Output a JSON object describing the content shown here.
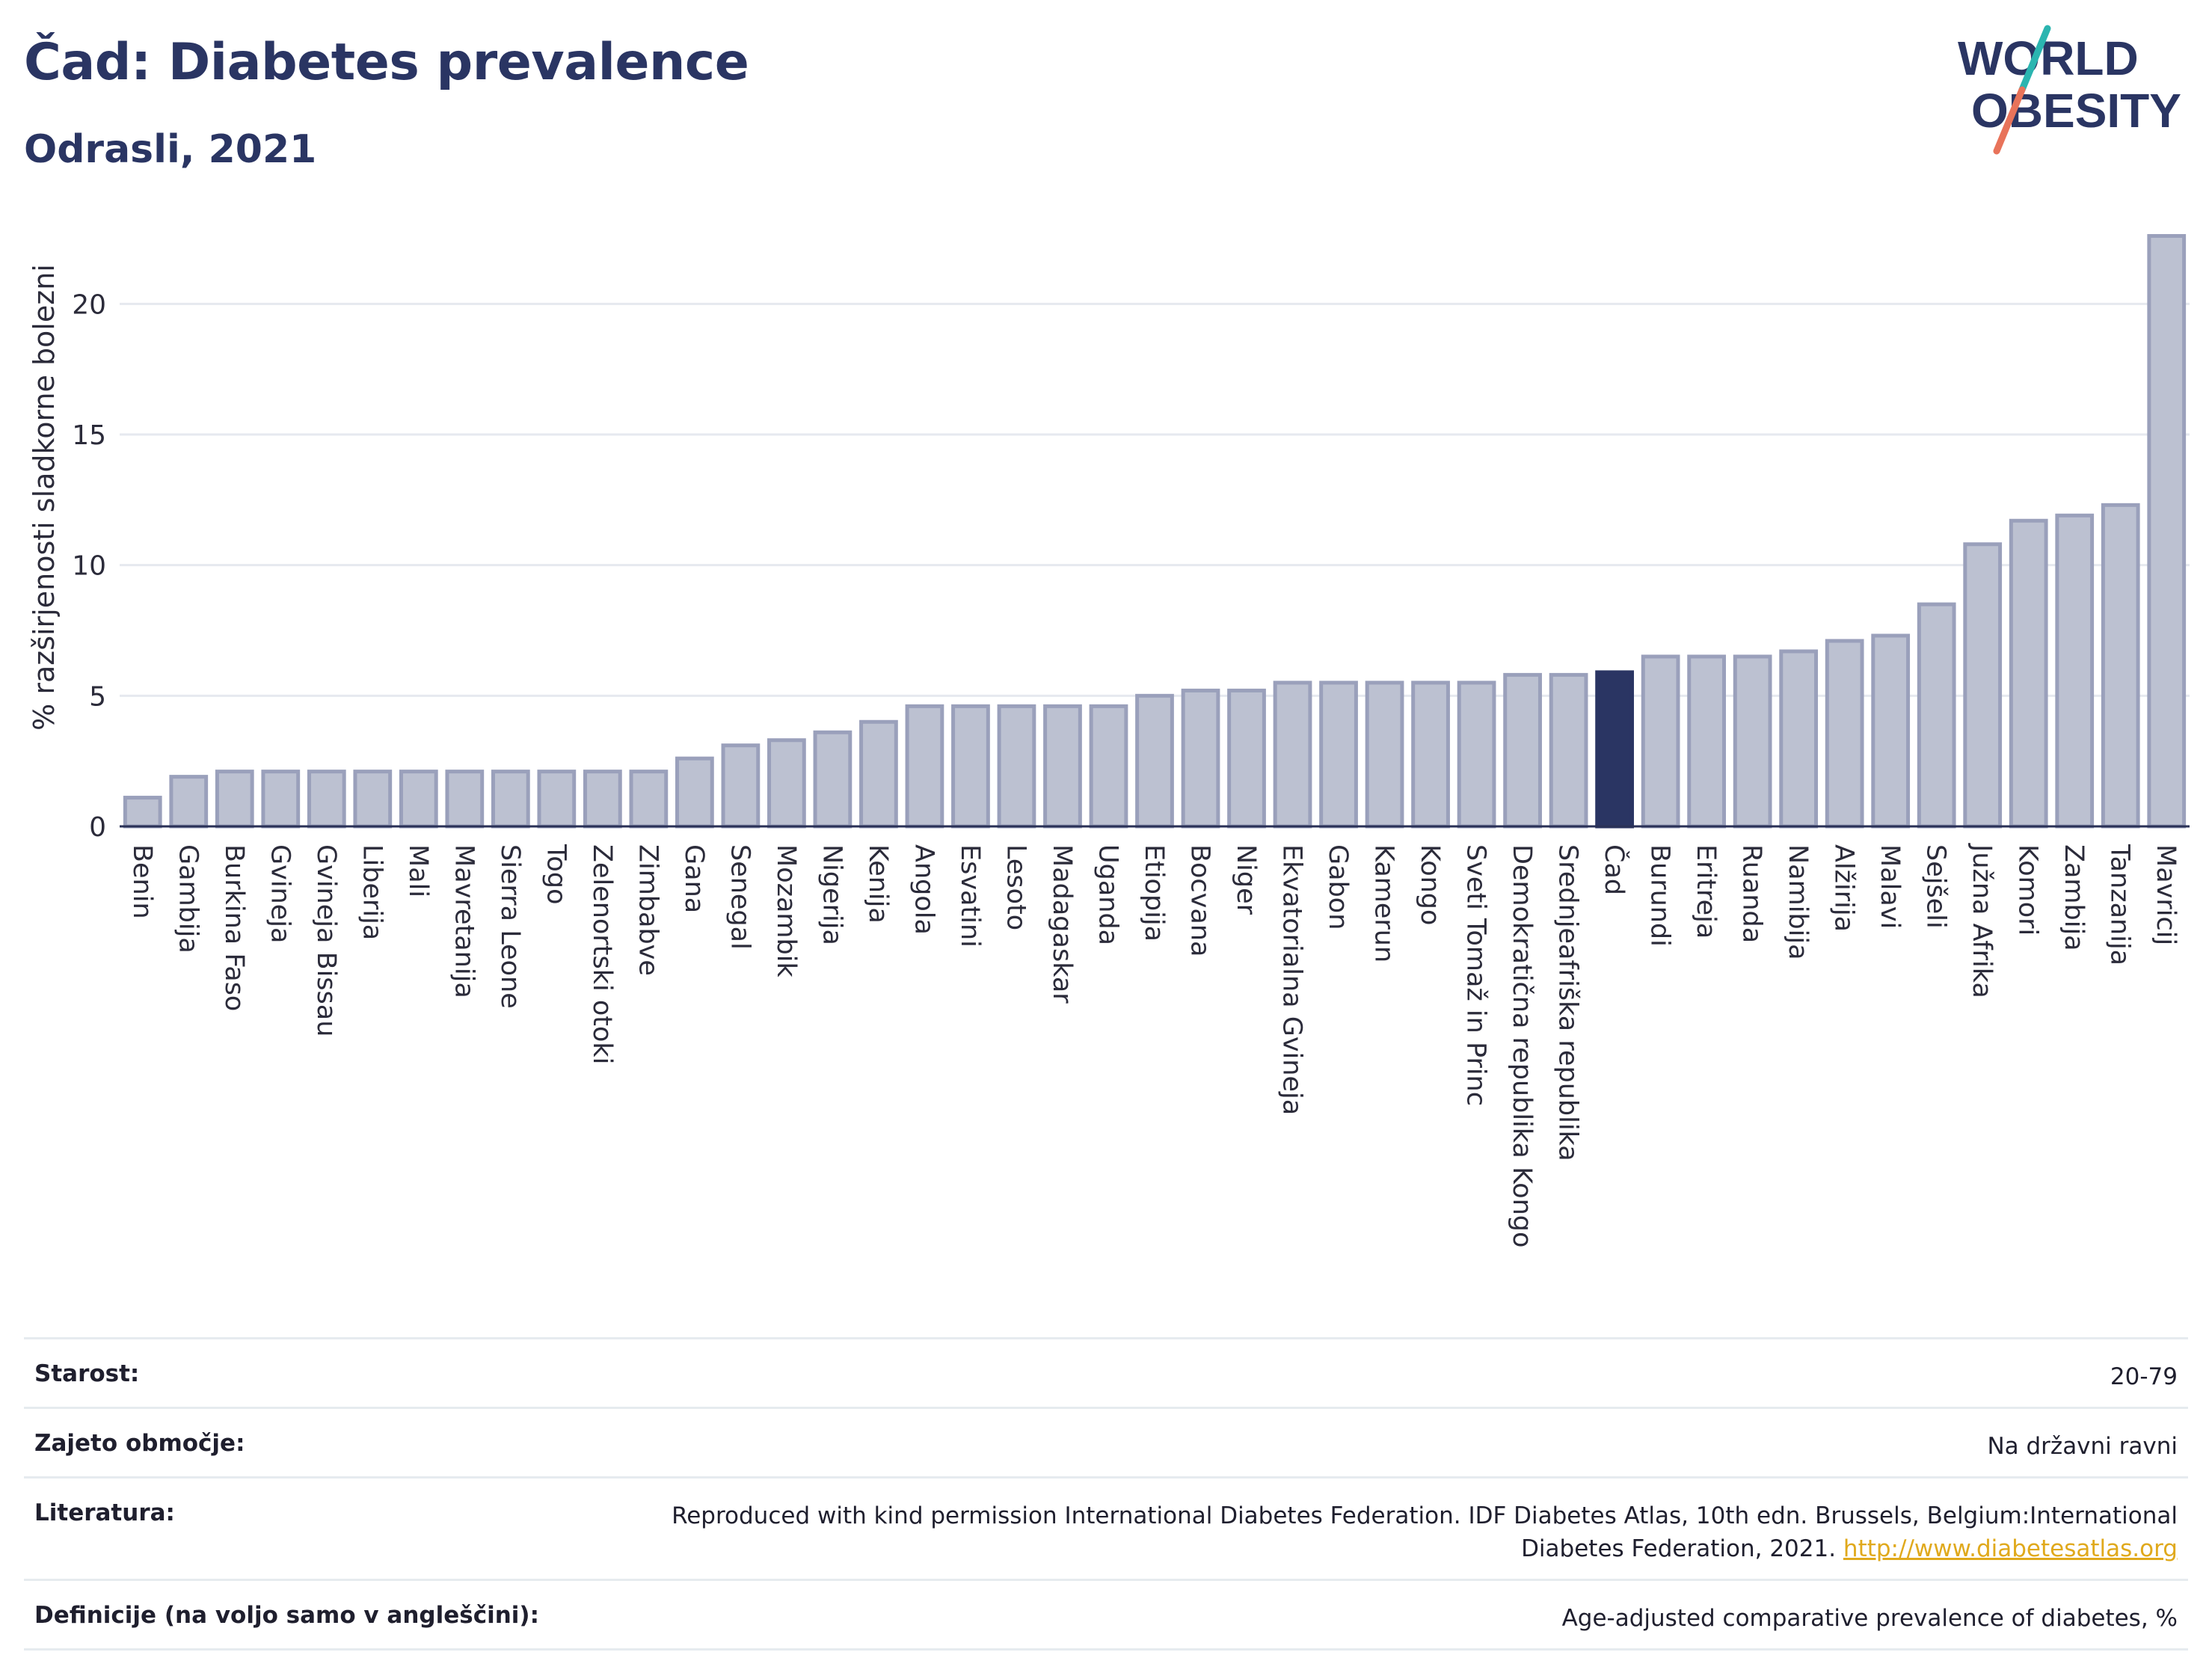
{
  "header": {
    "title": "Čad: Diabetes prevalence",
    "subtitle": "Odrasli, 2021"
  },
  "logo": {
    "line1": "WORLD",
    "line2": "OBESITY",
    "colors": {
      "text": "#2a3563",
      "slash_top": "#2bb5b0",
      "slash_bottom": "#e8735a"
    }
  },
  "colors": {
    "bar_fill": "#bcc1d1",
    "bar_stroke": "#9aa0bb",
    "highlight": "#2a3563",
    "grid": "#e6e9ef",
    "axis": "#2a3157"
  },
  "chart_data": {
    "type": "bar",
    "ylabel": "% razširjenosti sladkorne bolezni",
    "ylim": [
      0,
      22.7
    ],
    "yticks": [
      0,
      5,
      10,
      15,
      20
    ],
    "grid": true,
    "highlight": "Čad",
    "categories": [
      "Benin",
      "Gambija",
      "Burkina Faso",
      "Gvineja",
      "Gvineja Bissau",
      "Liberija",
      "Mali",
      "Mavretanija",
      "Sierra Leone",
      "Togo",
      "Zelenortski otoki",
      "Zimbabve",
      "Gana",
      "Senegal",
      "Mozambik",
      "Nigerija",
      "Kenija",
      "Angola",
      "Esvatini",
      "Lesoto",
      "Madagaskar",
      "Uganda",
      "Etiopija",
      "Bocvana",
      "Niger",
      "Ekvatorialna Gvineja",
      "Gabon",
      "Kamerun",
      "Kongo",
      "Sveti Tomaž in Princ",
      "Demokratična republika Kongo",
      "Srednjeafriška republika",
      "Čad",
      "Burundi",
      "Eritreja",
      "Ruanda",
      "Namibija",
      "Alžirija",
      "Malavi",
      "Sejšeli",
      "Južna Afrika",
      "Komori",
      "Zambija",
      "Tanzanija",
      "Mavricij"
    ],
    "values": [
      1.1,
      1.9,
      2.1,
      2.1,
      2.1,
      2.1,
      2.1,
      2.1,
      2.1,
      2.1,
      2.1,
      2.1,
      2.6,
      3.1,
      3.3,
      3.6,
      4.0,
      4.6,
      4.6,
      4.6,
      4.6,
      4.6,
      5.0,
      5.2,
      5.2,
      5.5,
      5.5,
      5.5,
      5.5,
      5.5,
      5.8,
      5.8,
      5.9,
      6.5,
      6.5,
      6.5,
      6.7,
      7.1,
      7.3,
      8.5,
      10.8,
      11.7,
      11.9,
      12.3,
      22.6
    ]
  },
  "meta": {
    "rows": [
      {
        "label": "Starost:",
        "value": "20-79"
      },
      {
        "label": "Zajeto območje:",
        "value": "Na državni ravni"
      },
      {
        "label": "Literatura:",
        "value": "Reproduced with kind permission International Diabetes Federation.  IDF Diabetes Atlas, 10th edn. Brussels, Belgium:International Diabetes Federation, 2021. ",
        "link": "http://www.diabetesatlas.org"
      },
      {
        "label": "Definicije (na voljo samo v angleščini):",
        "value": "Age-adjusted comparative prevalence of diabetes, %"
      }
    ]
  }
}
